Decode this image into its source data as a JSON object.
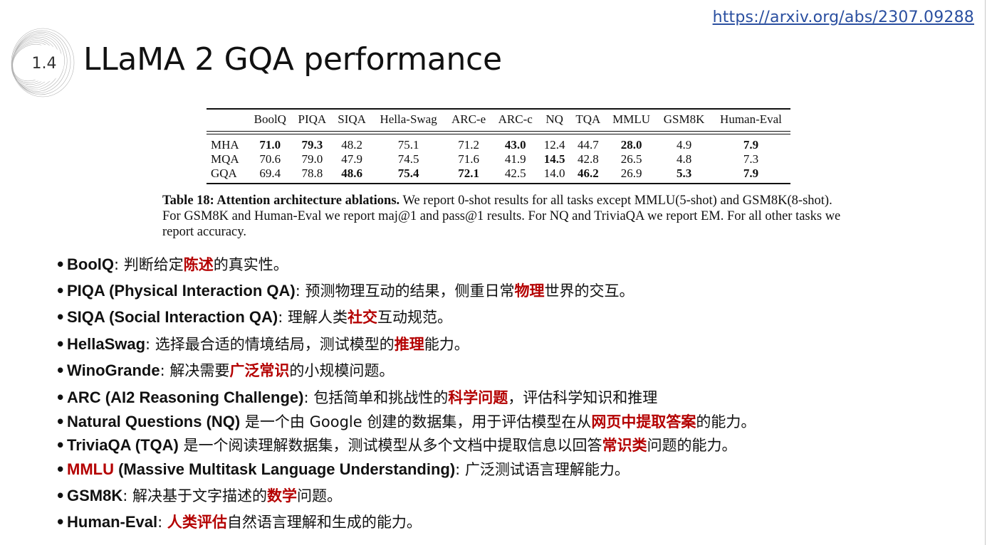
{
  "source_link": "https://arxiv.org/abs/2307.09288",
  "section_number": "1.4",
  "slide_title": "LLaMA 2 GQA performance",
  "table": {
    "headers": [
      "",
      "BoolQ",
      "PIQA",
      "SIQA",
      "Hella-Swag",
      "ARC-e",
      "ARC-c",
      "NQ",
      "TQA",
      "MMLU",
      "GSM8K",
      "Human-Eval"
    ],
    "rows": [
      {
        "name": "MHA",
        "cells": [
          "71.0",
          "79.3",
          "48.2",
          "75.1",
          "71.2",
          "43.0",
          "12.4",
          "44.7",
          "28.0",
          "4.9",
          "7.9"
        ],
        "bold": [
          true,
          true,
          false,
          false,
          false,
          true,
          false,
          false,
          true,
          false,
          true
        ]
      },
      {
        "name": "MQA",
        "cells": [
          "70.6",
          "79.0",
          "47.9",
          "74.5",
          "71.6",
          "41.9",
          "14.5",
          "42.8",
          "26.5",
          "4.8",
          "7.3"
        ],
        "bold": [
          false,
          false,
          false,
          false,
          false,
          false,
          true,
          false,
          false,
          false,
          false
        ]
      },
      {
        "name": "GQA",
        "cells": [
          "69.4",
          "78.8",
          "48.6",
          "75.4",
          "72.1",
          "42.5",
          "14.0",
          "46.2",
          "26.9",
          "5.3",
          "7.9"
        ],
        "bold": [
          false,
          false,
          true,
          true,
          true,
          false,
          false,
          true,
          false,
          true,
          true
        ]
      }
    ]
  },
  "caption": {
    "bold": "Table 18: Attention architecture ablations.",
    "text": " We report 0-shot results for all tasks except MMLU(5-shot) and GSM8K(8-shot). For GSM8K and Human-Eval we report maj@1 and pass@1 results. For NQ and TriviaQA we report EM. For all other tasks we report accuracy."
  },
  "bullets": [
    {
      "term": "BoolQ",
      "term_red": false,
      "parts": [
        {
          "t": ": 判断给定",
          "hl": false
        },
        {
          "t": "陈述",
          "hl": true
        },
        {
          "t": "的真实性。",
          "hl": false
        }
      ]
    },
    {
      "term": "PIQA (Physical Interaction QA)",
      "term_red": false,
      "parts": [
        {
          "t": ": 预测物理互动的结果，侧重日常",
          "hl": false
        },
        {
          "t": "物理",
          "hl": true
        },
        {
          "t": "世界的交互。",
          "hl": false
        }
      ]
    },
    {
      "term": "SIQA (Social Interaction QA)",
      "term_red": false,
      "parts": [
        {
          "t": ": 理解人类",
          "hl": false
        },
        {
          "t": "社交",
          "hl": true
        },
        {
          "t": "互动规范。",
          "hl": false
        }
      ]
    },
    {
      "term": "HellaSwag",
      "term_red": false,
      "parts": [
        {
          "t": ": 选择最合适的情境结局，测试模型的",
          "hl": false
        },
        {
          "t": "推理",
          "hl": true
        },
        {
          "t": "能力。",
          "hl": false
        }
      ]
    },
    {
      "term": "WinoGrande",
      "term_red": false,
      "parts": [
        {
          "t": ": 解决需要",
          "hl": false
        },
        {
          "t": "广泛常识",
          "hl": true
        },
        {
          "t": "的小规模问题。",
          "hl": false
        }
      ]
    },
    {
      "term": "ARC (AI2 Reasoning Challenge)",
      "term_red": false,
      "parts": [
        {
          "t": ": 包括简单和挑战性的",
          "hl": false
        },
        {
          "t": "科学问题",
          "hl": true
        },
        {
          "t": "，评估科学知识和推理",
          "hl": false
        }
      ]
    },
    {
      "term": "Natural Questions (NQ)",
      "term_red": false,
      "parts": [
        {
          "t": " 是一个由 Google 创建的数据集，用于评估模型在从",
          "hl": false
        },
        {
          "t": "网页中提取答案",
          "hl": true
        },
        {
          "t": "的能力。",
          "hl": false
        }
      ]
    },
    {
      "term": "TriviaQA (TQA)",
      "term_red": false,
      "parts": [
        {
          "t": " 是一个阅读理解数据集，测试模型从多个文档中提取信息以回答",
          "hl": false
        },
        {
          "t": "常识类",
          "hl": true
        },
        {
          "t": "问题的能力。",
          "hl": false
        }
      ]
    },
    {
      "term": "MMLU",
      "term_red": true,
      "term_rest": " (Massive Multitask Language Understanding)",
      "parts": [
        {
          "t": ": 广泛测试语言理解能力。",
          "hl": false
        }
      ]
    },
    {
      "term": "GSM8K",
      "term_red": false,
      "parts": [
        {
          "t": ": 解决基于文字描述的",
          "hl": false
        },
        {
          "t": "数学",
          "hl": true
        },
        {
          "t": "问题。",
          "hl": false
        }
      ]
    },
    {
      "term": "Human-Eval",
      "term_red": false,
      "parts": [
        {
          "t": ": ",
          "hl": false
        },
        {
          "t": "人类评估",
          "hl": true
        },
        {
          "t": "自然语言理解和生成的能力。",
          "hl": false
        }
      ]
    }
  ]
}
